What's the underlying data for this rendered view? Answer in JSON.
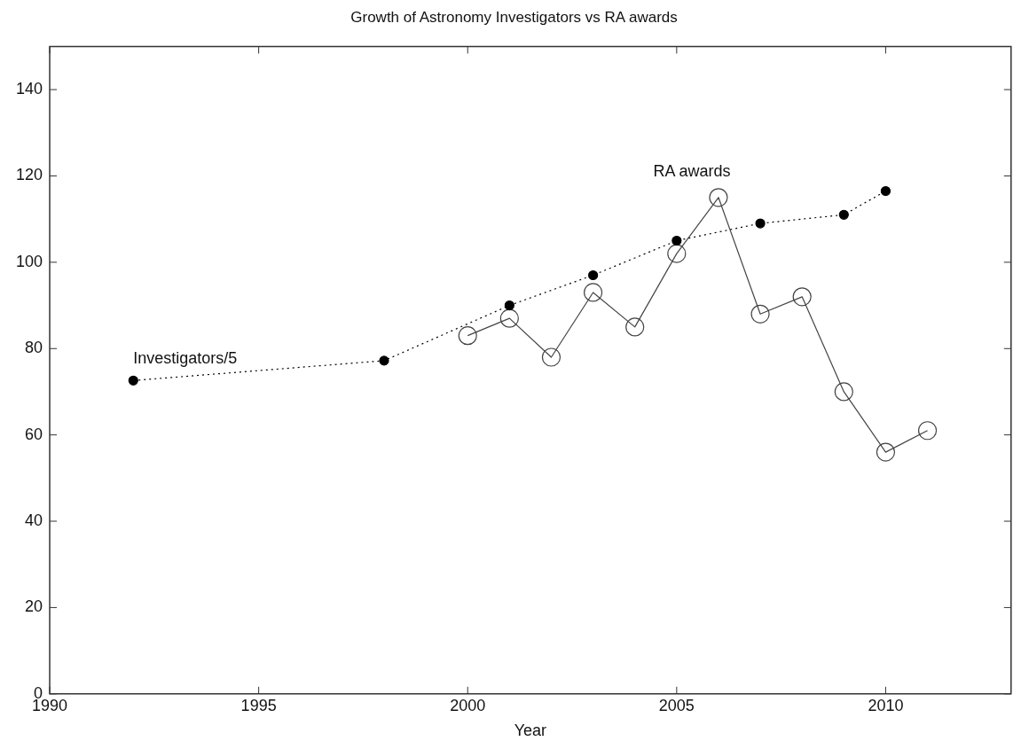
{
  "chart_data": {
    "type": "line",
    "title": "Growth of Astronomy Investigators vs RA awards",
    "xlabel": "Year",
    "xlim": [
      1990,
      2013
    ],
    "xticks": [
      1990,
      1995,
      2000,
      2005,
      2010
    ],
    "ylim": [
      0,
      150
    ],
    "yticks": [
      0,
      20,
      40,
      60,
      80,
      100,
      120,
      140
    ],
    "grid": false,
    "legend": false,
    "series": [
      {
        "name": "Investigators/5",
        "color": "#000000",
        "marker": "circle",
        "line_style": "dotted",
        "x": [
          1992,
          1998,
          2001,
          2003,
          2005,
          2007,
          2009,
          2010
        ],
        "values": [
          72.6,
          77.2,
          90,
          97,
          105,
          109,
          111,
          116.5
        ]
      },
      {
        "name": "RA awards",
        "color": "#444444",
        "marker": "circle",
        "line_style": "solid",
        "x": [
          2000,
          2001,
          2002,
          2003,
          2004,
          2005,
          2006,
          2007,
          2008,
          2009,
          2010,
          2011
        ],
        "values": [
          83,
          87,
          78,
          93,
          85,
          102,
          115,
          88,
          92,
          70,
          56,
          61
        ]
      }
    ]
  }
}
